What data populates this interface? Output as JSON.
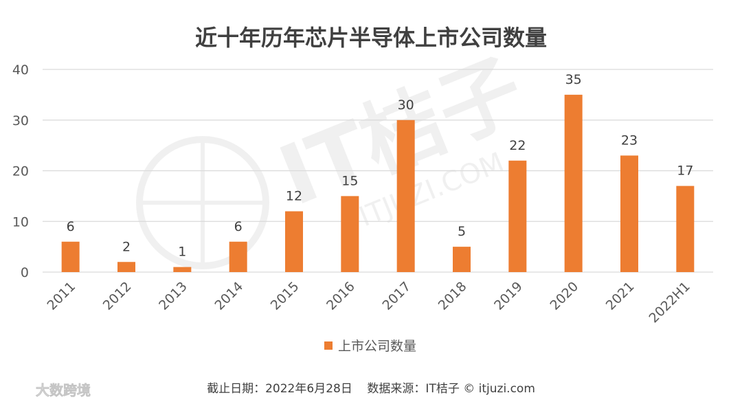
{
  "chart_data": {
    "type": "bar",
    "title": "近十年历年芯片半导体上市公司数量",
    "categories": [
      "2011",
      "2012",
      "2013",
      "2014",
      "2015",
      "2016",
      "2017",
      "2018",
      "2019",
      "2020",
      "2021",
      "2022H1"
    ],
    "series": [
      {
        "name": "上市公司数量",
        "values": [
          6,
          2,
          1,
          6,
          12,
          15,
          30,
          5,
          22,
          35,
          23,
          17
        ]
      }
    ],
    "ylim": [
      0,
      40
    ],
    "yticks": [
      0,
      10,
      20,
      30,
      40
    ],
    "grid": true,
    "legend_position": "bottom",
    "data_labels": true
  },
  "colors": {
    "bar": "#ED7D31",
    "grid": "#D9D9D9",
    "title": "#404040",
    "text": "#595959"
  },
  "footer": {
    "text": "截止日期：2022年6月28日    数据来源：IT桔子 © itjuzi.com"
  },
  "watermark": {
    "background_logo_text": "IT桔子",
    "background_url_text": "ITJUZI.COM",
    "corner_text": "大数跨境",
    "corner_icon": "logo-icon"
  }
}
